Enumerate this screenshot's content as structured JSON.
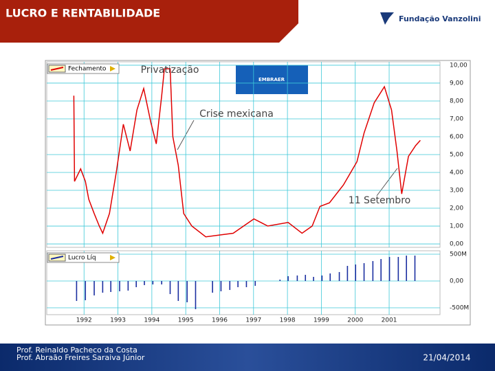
{
  "header": {
    "title": "LUCRO E RENTABILIDADE",
    "brand": "Fundação Vanzolini"
  },
  "chart_data": [
    {
      "type": "line",
      "x": [
        1991.7,
        1991.72,
        1991.9,
        1992.04,
        1992.14,
        1992.3,
        1992.45,
        1992.55,
        1992.75,
        1992.95,
        1993.16,
        1993.36,
        1993.56,
        1993.76,
        1993.97,
        1994.13,
        1994.29,
        1994.37,
        1994.54,
        1994.62,
        1994.78,
        1994.94,
        1995.18,
        1995.59,
        1995.99,
        1996.4,
        1997.01,
        1997.42,
        1998.02,
        1998.43,
        1998.73,
        1998.96,
        1999.24,
        1999.65,
        2000.05,
        2000.26,
        2000.56,
        2000.86,
        2001.07,
        2001.23,
        2001.37,
        2001.57,
        2001.78,
        2001.92
      ],
      "series": [
        {
          "name": "Fechamento",
          "color": "#e00000",
          "values": [
            8.3,
            3.5,
            4.2,
            3.5,
            2.5,
            1.7,
            1.0,
            0.6,
            1.7,
            4.0,
            6.7,
            5.2,
            7.5,
            8.7,
            6.8,
            5.6,
            8.3,
            9.8,
            9.8,
            6.0,
            4.4,
            1.7,
            1.0,
            0.4,
            0.5,
            0.6,
            1.4,
            1.0,
            1.2,
            0.6,
            1.0,
            2.1,
            2.3,
            3.3,
            4.6,
            6.2,
            7.9,
            8.8,
            7.5,
            5.2,
            2.8,
            4.9,
            5.5,
            5.8
          ]
        }
      ],
      "xlim": [
        1990.9,
        2002.5
      ],
      "ylim": [
        -0.19,
        10.19
      ],
      "yticks": [
        {
          "value": 0,
          "label": "0,00"
        },
        {
          "value": 1,
          "label": "1,00"
        },
        {
          "value": 2,
          "label": "2,00"
        },
        {
          "value": 3,
          "label": "3,00"
        },
        {
          "value": 4,
          "label": "4,00"
        },
        {
          "value": 5,
          "label": "5,00"
        },
        {
          "value": 6,
          "label": "6,00"
        },
        {
          "value": 7,
          "label": "7,00"
        },
        {
          "value": 8,
          "label": "8,00"
        },
        {
          "value": 9,
          "label": "9,00"
        },
        {
          "value": 10,
          "label": "10,00"
        }
      ],
      "grid": true,
      "annotations": [
        "Privatização",
        "Crise mexicana",
        "11 Setembro"
      ],
      "logo": "EMBRAER"
    },
    {
      "type": "bar",
      "x": [
        1991.78,
        1992.04,
        1992.3,
        1992.55,
        1992.79,
        1993.05,
        1993.3,
        1993.54,
        1993.78,
        1994.03,
        1994.29,
        1994.54,
        1994.78,
        1995.04,
        1995.29,
        1995.79,
        1996.04,
        1996.3,
        1996.54,
        1996.79,
        1997.05,
        1997.78,
        1998.02,
        1998.29,
        1998.53,
        1998.77,
        1999.02,
        1999.26,
        1999.53,
        1999.77,
        2000.01,
        2000.26,
        2000.52,
        2000.76,
        2001.01,
        2001.27,
        2001.51,
        2001.76
      ],
      "series": [
        {
          "name": "Lucro Líq",
          "color": "#1a2ea0",
          "values": [
            -372,
            -359,
            -269,
            -218,
            -205,
            -192,
            -179,
            -115,
            -77,
            -64,
            -64,
            -244,
            -372,
            -397,
            -526,
            -218,
            -192,
            -167,
            -115,
            -115,
            -90,
            26,
            90,
            103,
            115,
            77,
            103,
            141,
            167,
            282,
            308,
            333,
            372,
            410,
            449,
            449,
            474,
            474
          ]
        }
      ],
      "xlim": [
        1990.9,
        2002.5
      ],
      "ylim": [
        -628,
        564
      ],
      "yticks": [
        {
          "value": -500,
          "label": "-500M"
        },
        {
          "value": 0,
          "label": "0,00"
        },
        {
          "value": 500,
          "label": "500M"
        }
      ],
      "xticks": [
        1992,
        1993,
        1994,
        1995,
        1996,
        1997,
        1998,
        1999,
        2000,
        2001
      ],
      "grid": true
    }
  ],
  "footer": {
    "authors": [
      "Prof. Reinaldo Pacheco da Costa",
      "Prof. Abraão Freires Saraiva Júnior"
    ],
    "date": "21/04/2014"
  }
}
